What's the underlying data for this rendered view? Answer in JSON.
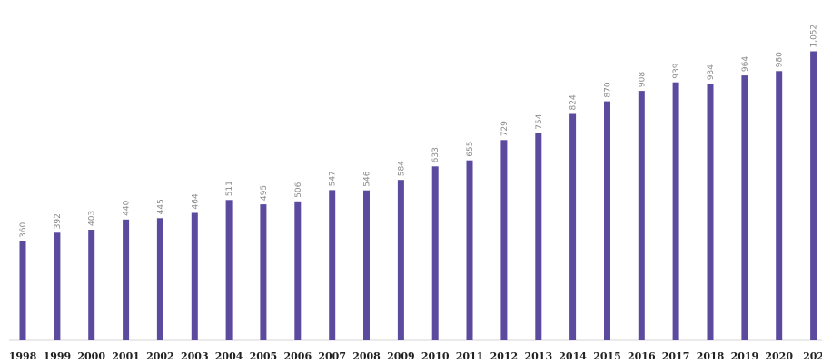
{
  "chart_data": {
    "type": "bar",
    "categories": [
      "1998",
      "1999",
      "2000",
      "2001",
      "2002",
      "2003",
      "2004",
      "2005",
      "2006",
      "2007",
      "2008",
      "2009",
      "2010",
      "2011",
      "2012",
      "2013",
      "2014",
      "2015",
      "2016",
      "2017",
      "2018",
      "2019",
      "2020",
      "202"
    ],
    "values": [
      360,
      392,
      403,
      440,
      445,
      464,
      511,
      495,
      506,
      547,
      546,
      584,
      633,
      655,
      729,
      754,
      824,
      870,
      908,
      939,
      934,
      964,
      980,
      1052
    ],
    "labels": [
      "360",
      "392",
      "403",
      "440",
      "445",
      "464",
      "511",
      "495",
      "506",
      "547",
      "546",
      "584",
      "633",
      "655",
      "729",
      "754",
      "824",
      "870",
      "908",
      "939",
      "934",
      "964",
      "980",
      "1,052"
    ],
    "title": "",
    "xlabel": "",
    "ylabel": "",
    "ylim": [
      0,
      1052
    ],
    "grid": false,
    "legend": "none",
    "bar_color": "#5b4a9e"
  }
}
